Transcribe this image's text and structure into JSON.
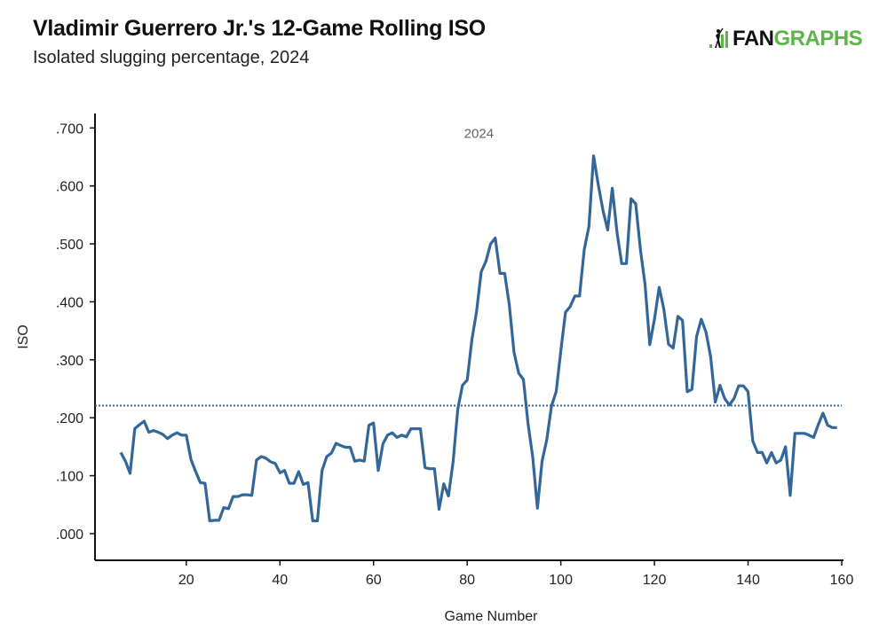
{
  "header": {
    "title": "Vladimir Guerrero Jr.'s 12-Game Rolling ISO",
    "subtitle": "Isolated slugging percentage, 2024"
  },
  "logo": {
    "text_left": "FAN",
    "text_right": "GRAPHS",
    "icon": "batter-bars-icon",
    "colors": {
      "dark": "#111111",
      "green": "#5cb548"
    }
  },
  "chart_data": {
    "type": "line",
    "title": "Vladimir Guerrero Jr.'s 12-Game Rolling ISO",
    "subtitle": "Isolated slugging percentage, 2024",
    "xlabel": "Game Number",
    "ylabel": "ISO",
    "xlim": [
      0.5,
      160
    ],
    "ylim": [
      -0.046,
      0.725
    ],
    "xticks": [
      20,
      40,
      60,
      80,
      100,
      120,
      140,
      160
    ],
    "xtick_labels": [
      "20",
      "40",
      "60",
      "80",
      "100",
      "120",
      "140",
      "160"
    ],
    "yticks": [
      0,
      0.1,
      0.2,
      0.3,
      0.4,
      0.5,
      0.6,
      0.7
    ],
    "ytick_labels": [
      ".000",
      ".100",
      ".200",
      ".300",
      ".400",
      ".500",
      ".600",
      ".700"
    ],
    "grid": false,
    "line_color": "#336699",
    "reference_line": {
      "y": 0.221,
      "style": "dotted",
      "color": "#336699"
    },
    "annotations": [
      {
        "text": "2024",
        "x": 82.5,
        "y": 0.683
      }
    ],
    "x_start": 6,
    "values": [
      0.14,
      0.125,
      0.104,
      0.181,
      0.188,
      0.194,
      0.175,
      0.178,
      0.175,
      0.171,
      0.164,
      0.17,
      0.174,
      0.17,
      0.17,
      0.128,
      0.107,
      0.088,
      0.087,
      0.022,
      0.023,
      0.023,
      0.045,
      0.043,
      0.064,
      0.064,
      0.067,
      0.067,
      0.066,
      0.127,
      0.133,
      0.13,
      0.124,
      0.121,
      0.105,
      0.109,
      0.087,
      0.087,
      0.107,
      0.085,
      0.088,
      0.022,
      0.022,
      0.109,
      0.133,
      0.139,
      0.156,
      0.152,
      0.149,
      0.149,
      0.125,
      0.127,
      0.125,
      0.187,
      0.191,
      0.109,
      0.155,
      0.17,
      0.174,
      0.166,
      0.17,
      0.167,
      0.181,
      0.181,
      0.181,
      0.114,
      0.112,
      0.112,
      0.042,
      0.086,
      0.065,
      0.125,
      0.215,
      0.256,
      0.265,
      0.335,
      0.383,
      0.452,
      0.47,
      0.5,
      0.51,
      0.449,
      0.449,
      0.395,
      0.313,
      0.277,
      0.266,
      0.19,
      0.132,
      0.044,
      0.125,
      0.162,
      0.22,
      0.245,
      0.315,
      0.382,
      0.392,
      0.41,
      0.41,
      0.49,
      0.53,
      0.652,
      0.602,
      0.558,
      0.524,
      0.596,
      0.52,
      0.466,
      0.466,
      0.578,
      0.569,
      0.49,
      0.43,
      0.326,
      0.37,
      0.425,
      0.388,
      0.327,
      0.32,
      0.375,
      0.368,
      0.245,
      0.249,
      0.34,
      0.37,
      0.348,
      0.305,
      0.227,
      0.256,
      0.233,
      0.222,
      0.233,
      0.255,
      0.255,
      0.245,
      0.16,
      0.14,
      0.14,
      0.122,
      0.14,
      0.122,
      0.127,
      0.15,
      0.066,
      0.173,
      0.173,
      0.173,
      0.17,
      0.166,
      0.188,
      0.208,
      0.187,
      0.183,
      0.183
    ]
  }
}
